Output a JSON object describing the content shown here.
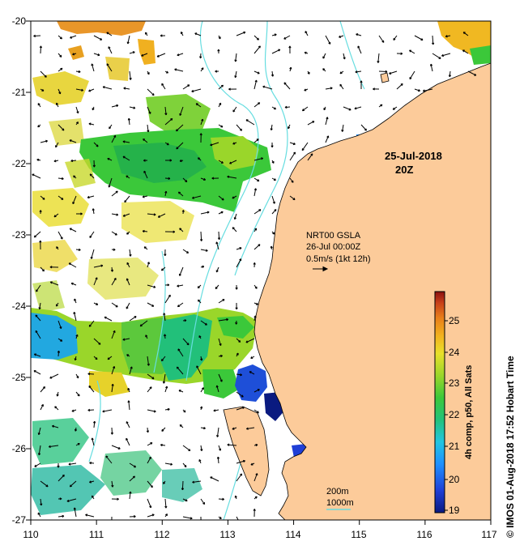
{
  "map": {
    "lon_ticks": [
      "110",
      "111",
      "112",
      "113",
      "114",
      "115",
      "116",
      "117"
    ],
    "lat_ticks": [
      "-20",
      "-21",
      "-22",
      "-23",
      "-24",
      "-25",
      "-26",
      "-27"
    ],
    "lon_range": [
      110,
      117
    ],
    "lat_range": [
      -27,
      -20
    ],
    "land_color": "#fccb9a",
    "bathymetry_color": "#66dde0"
  },
  "annotations": {
    "date_line1": "25-Jul-2018",
    "date_line2": "20Z",
    "product_line1": "NRT00 GSLA",
    "product_line2": "26-Jul 00:00Z",
    "product_line3": "0.5m/s (1kt 12h)",
    "contour_200": "200m",
    "contour_1000": "1000m"
  },
  "colorbar": {
    "title": "4h comp, p50, All Sats",
    "ticks": [
      "19",
      "20",
      "21",
      "22",
      "23",
      "24",
      "25"
    ],
    "range": [
      19,
      25.8
    ],
    "colors": [
      "#0a1a80",
      "#1f3fd6",
      "#1e90ff",
      "#22c5e0",
      "#22c27a",
      "#3bc83a",
      "#9ad62a",
      "#e8e02a",
      "#f2b21e",
      "#e8801a",
      "#c8401a",
      "#8a1010"
    ]
  },
  "credit": "© IMOS 01-Aug-2018 17:52 Hobart Time"
}
